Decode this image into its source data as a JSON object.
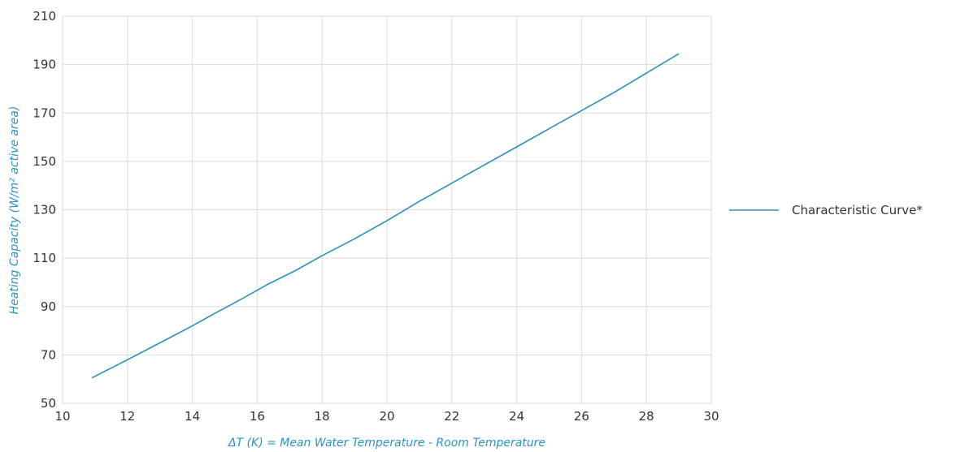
{
  "chart_data": {
    "type": "line",
    "xlabel": "ΔT (K) = Mean Water Temperature - Room Temperature",
    "ylabel": "Heating Capacity (W/m² active area)",
    "xlim": [
      10,
      30
    ],
    "ylim": [
      50,
      210
    ],
    "x_ticks": [
      10,
      12,
      14,
      16,
      18,
      20,
      22,
      24,
      26,
      28,
      30
    ],
    "y_ticks": [
      50,
      70,
      90,
      110,
      130,
      150,
      170,
      190,
      210
    ],
    "grid": true,
    "legend_position": "right",
    "series": [
      {
        "name": "Characteristic Curve*",
        "color": "#2a8fbd",
        "x": [
          10.9,
          12,
          13,
          14,
          14.6,
          15.5,
          16.3,
          17.2,
          18,
          19,
          20,
          21,
          22,
          23,
          24,
          25,
          26,
          27,
          28,
          29
        ],
        "y": [
          60.5,
          68,
          75,
          82,
          86.5,
          93,
          99,
          105,
          111,
          118,
          125.5,
          133.5,
          141,
          148.5,
          156,
          163.5,
          171,
          178.5,
          186.5,
          194.5
        ]
      }
    ]
  }
}
